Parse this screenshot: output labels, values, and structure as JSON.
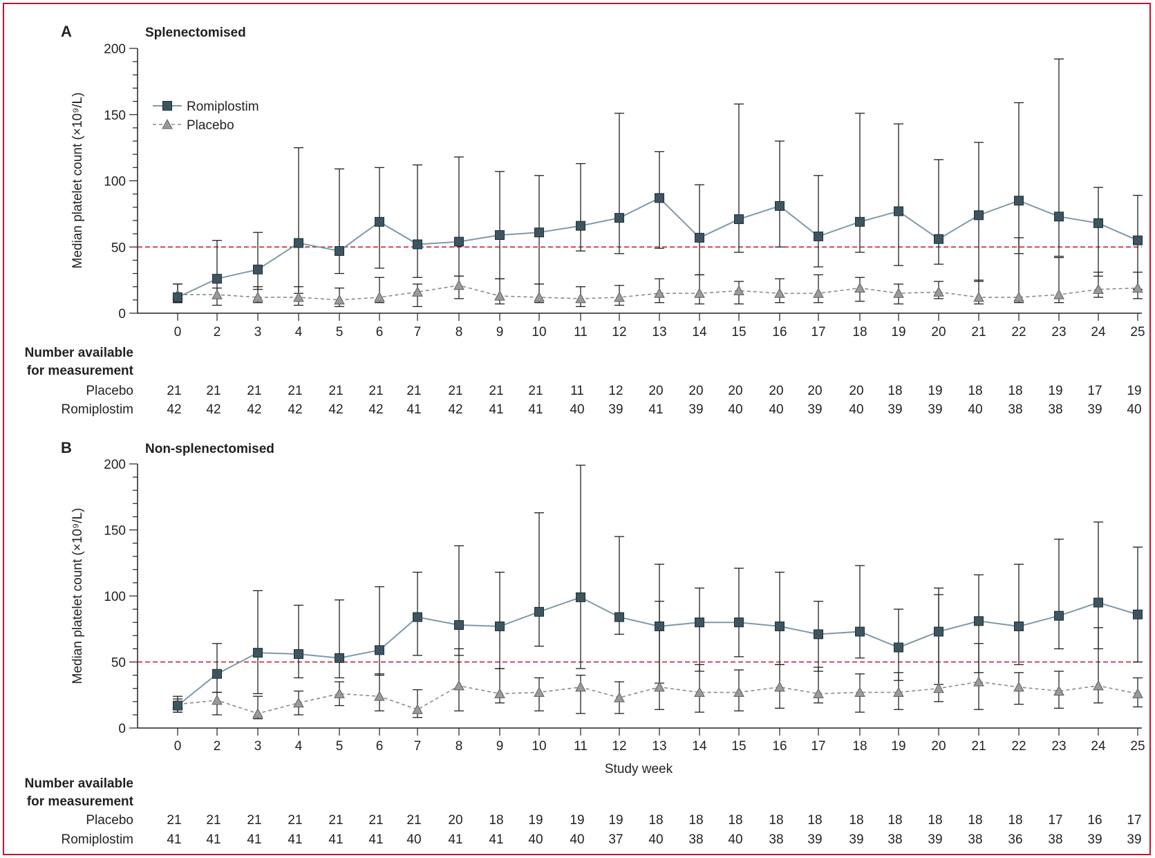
{
  "figure": {
    "number_available_title_line1": "Number available",
    "number_available_title_line2": "for measurement",
    "placebo_label": "Placebo",
    "romiplostim_label": "Romiplostim",
    "legend": [
      {
        "label": "Romiplostim",
        "marker": "square"
      },
      {
        "label": "Placebo",
        "marker": "triangle"
      }
    ],
    "colors": {
      "romiplostim_marker": "#3d5560",
      "romiplostim_line": "#7e99a8",
      "placebo_marker": "#9a9a9a",
      "placebo_line": "#8a8a8a",
      "reference_line": "#c8102e",
      "frame": "#c8102e"
    }
  },
  "chart_data": [
    {
      "panel": "A",
      "type": "line",
      "title": "Splenectomised",
      "xlabel": "",
      "ylabel": "Median platelet count (×10⁹/L)",
      "x": [
        0,
        2,
        3,
        4,
        5,
        6,
        7,
        8,
        9,
        10,
        11,
        12,
        13,
        14,
        15,
        16,
        17,
        18,
        19,
        20,
        21,
        22,
        23,
        24,
        25
      ],
      "ylim": [
        0,
        200
      ],
      "yticks": [
        0,
        50,
        100,
        150,
        200
      ],
      "reference_line": 50,
      "legend_position": "top-left",
      "series": [
        {
          "name": "Romiplostim",
          "values": [
            12,
            26,
            33,
            53,
            47,
            69,
            52,
            54,
            59,
            61,
            66,
            72,
            87,
            57,
            71,
            81,
            58,
            69,
            77,
            56,
            74,
            85,
            73,
            68,
            55
          ],
          "upper": [
            22,
            55,
            61,
            125,
            109,
            110,
            112,
            118,
            107,
            104,
            113,
            151,
            122,
            97,
            158,
            130,
            104,
            151,
            143,
            116,
            129,
            159,
            192,
            95,
            89
          ],
          "lower": [
            8,
            11,
            18,
            15,
            30,
            34,
            27,
            28,
            26,
            22,
            47,
            45,
            49,
            29,
            46,
            50,
            35,
            46,
            36,
            37,
            24,
            45,
            43,
            28,
            18
          ]
        },
        {
          "name": "Placebo",
          "values": [
            14,
            14,
            12,
            12,
            10,
            12,
            16,
            21,
            13,
            12,
            11,
            12,
            15,
            15,
            17,
            15,
            15,
            19,
            15,
            16,
            12,
            12,
            14,
            18,
            19
          ],
          "upper": [
            22,
            19,
            20,
            20,
            19,
            27,
            22,
            28,
            26,
            22,
            20,
            21,
            26,
            29,
            24,
            26,
            29,
            27,
            22,
            24,
            25,
            57,
            42,
            31,
            31
          ],
          "lower": [
            8,
            6,
            8,
            6,
            5,
            8,
            5,
            11,
            7,
            8,
            5,
            6,
            8,
            7,
            7,
            8,
            8,
            9,
            7,
            11,
            7,
            8,
            8,
            12,
            11
          ]
        }
      ],
      "counts": {
        "placebo": [
          21,
          21,
          21,
          21,
          21,
          21,
          21,
          21,
          21,
          21,
          11,
          12,
          20,
          20,
          20,
          20,
          20,
          20,
          18,
          19,
          18,
          18,
          19,
          17,
          19
        ],
        "romiplostim": [
          42,
          42,
          42,
          42,
          42,
          42,
          41,
          42,
          41,
          41,
          40,
          39,
          41,
          39,
          40,
          40,
          39,
          40,
          39,
          39,
          40,
          38,
          38,
          39,
          40
        ]
      }
    },
    {
      "panel": "B",
      "type": "line",
      "title": "Non-splenectomised",
      "xlabel": "Study week",
      "ylabel": "Median platelet count (×10⁹/L)",
      "x": [
        0,
        2,
        3,
        4,
        5,
        6,
        7,
        8,
        9,
        10,
        11,
        12,
        13,
        14,
        15,
        16,
        17,
        18,
        19,
        20,
        21,
        22,
        23,
        24,
        25
      ],
      "ylim": [
        0,
        200
      ],
      "yticks": [
        0,
        50,
        100,
        150,
        200
      ],
      "reference_line": 50,
      "series": [
        {
          "name": "Romiplostim",
          "values": [
            17,
            41,
            57,
            56,
            53,
            59,
            84,
            78,
            77,
            88,
            99,
            84,
            77,
            80,
            80,
            77,
            71,
            73,
            61,
            73,
            81,
            77,
            85,
            95,
            86
          ],
          "upper": [
            22,
            64,
            104,
            93,
            97,
            107,
            118,
            138,
            118,
            163,
            199,
            145,
            124,
            106,
            121,
            118,
            96,
            123,
            90,
            106,
            116,
            124,
            143,
            156,
            137
          ],
          "lower": [
            12,
            27,
            26,
            38,
            38,
            40,
            55,
            55,
            45,
            62,
            45,
            71,
            34,
            43,
            54,
            48,
            43,
            53,
            36,
            33,
            42,
            48,
            60,
            60,
            50
          ]
        },
        {
          "name": "Placebo",
          "values": [
            18,
            21,
            11,
            19,
            26,
            24,
            14,
            32,
            26,
            27,
            31,
            23,
            31,
            27,
            27,
            31,
            26,
            27,
            27,
            30,
            35,
            31,
            28,
            32,
            26
          ],
          "upper": [
            24,
            27,
            24,
            28,
            35,
            41,
            29,
            60,
            45,
            38,
            40,
            35,
            96,
            48,
            44,
            48,
            46,
            41,
            42,
            101,
            64,
            42,
            43,
            76,
            38
          ],
          "lower": [
            12,
            10,
            7,
            10,
            17,
            13,
            8,
            13,
            19,
            13,
            11,
            11,
            14,
            12,
            13,
            15,
            19,
            12,
            14,
            20,
            14,
            18,
            15,
            19,
            16
          ]
        }
      ],
      "counts": {
        "placebo": [
          21,
          21,
          21,
          21,
          21,
          21,
          21,
          20,
          18,
          19,
          19,
          19,
          18,
          18,
          18,
          18,
          18,
          18,
          18,
          18,
          18,
          18,
          17,
          16,
          17
        ],
        "romiplostim": [
          41,
          41,
          41,
          41,
          41,
          41,
          40,
          41,
          41,
          40,
          40,
          37,
          40,
          38,
          40,
          38,
          39,
          39,
          38,
          39,
          38,
          36,
          38,
          39,
          39
        ]
      }
    }
  ]
}
